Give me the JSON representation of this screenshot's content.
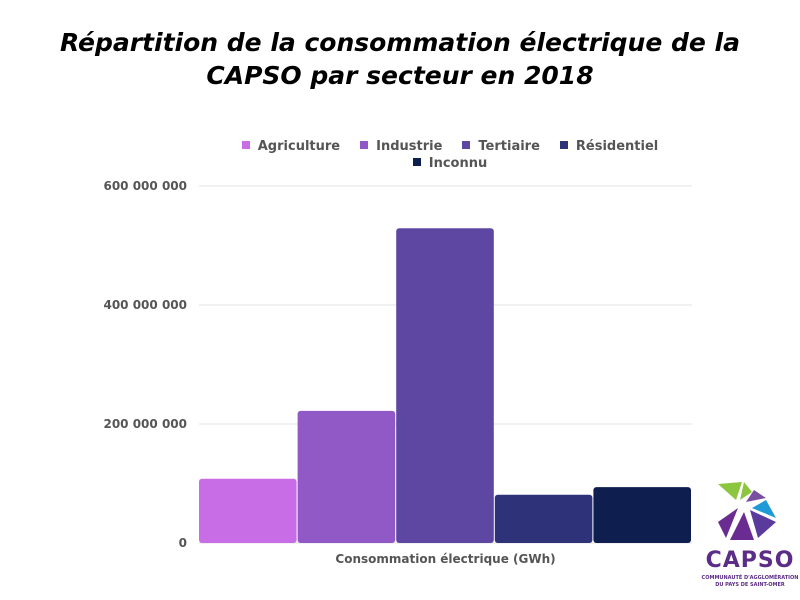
{
  "chart_data": {
    "type": "bar",
    "title": "Répartition de la consommation électrique de la CAPSO par secteur en 2018",
    "title_lines": [
      "Répartition de la consommation électrique de la",
      "CAPSO par secteur en 2018"
    ],
    "categories": [
      "Consommation électrique (GWh)"
    ],
    "xlabel": "Consommation électrique (GWh)",
    "ylabel": "",
    "ylim": [
      0,
      600000000
    ],
    "yticks": [
      0,
      200000000,
      400000000,
      600000000
    ],
    "ytick_labels": [
      "0",
      "200 000 000",
      "400 000 000",
      "600 000 000"
    ],
    "grid": true,
    "legend_position": "top",
    "series": [
      {
        "name": "Agriculture",
        "values": [
          108000000
        ],
        "color": "#c86de6"
      },
      {
        "name": "Industrie",
        "values": [
          222000000
        ],
        "color": "#9059c6"
      },
      {
        "name": "Tertiaire",
        "values": [
          529000000
        ],
        "color": "#5e47a3"
      },
      {
        "name": "Résidentiel",
        "values": [
          81000000
        ],
        "color": "#2e3278"
      },
      {
        "name": "Inconnu",
        "values": [
          94000000
        ],
        "color": "#0e1f4f"
      }
    ]
  },
  "logo": {
    "name": "CAPSO",
    "subtitle_lines": [
      "COMMUNAUTÉ D'AGGLOMÉRATION",
      "DU PAYS DE SAINT-OMER"
    ]
  }
}
